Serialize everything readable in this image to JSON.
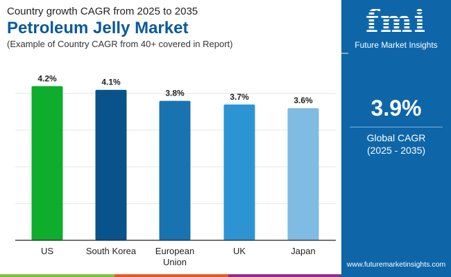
{
  "header": {
    "subtitle_top": "Country growth CAGR from 2025 to 2035",
    "title": "Petroleum Jelly Market",
    "note": "(Example of Country CAGR from 40+ covered in Report)"
  },
  "panel": {
    "logo_text": "fmi",
    "brand": "Future Market Insights",
    "global_value": "3.9%",
    "global_label": "Global CAGR",
    "global_period": "(2025 - 2035)",
    "url": "www.futuremarketinsights.com",
    "bg_color": "#0e66a9"
  },
  "chart_data": {
    "type": "bar",
    "categories": [
      [
        "US"
      ],
      [
        "South Korea"
      ],
      [
        "European",
        "Union"
      ],
      [
        "UK"
      ],
      [
        "Japan"
      ]
    ],
    "values": [
      4.2,
      4.1,
      3.8,
      3.7,
      3.6
    ],
    "data_labels": [
      "4.2%",
      "4.1%",
      "3.8%",
      "3.7%",
      "3.6%"
    ],
    "colors": [
      "#0ead2d",
      "#08538c",
      "#1a73b1",
      "#2d94d4",
      "#7fbbe2"
    ],
    "ylim": [
      0,
      4.2
    ],
    "grid": true,
    "title": "",
    "xlabel": "",
    "ylabel": ""
  },
  "stripe_colors": [
    "#7cc242",
    "#e8562a",
    "#8d2c8c"
  ]
}
